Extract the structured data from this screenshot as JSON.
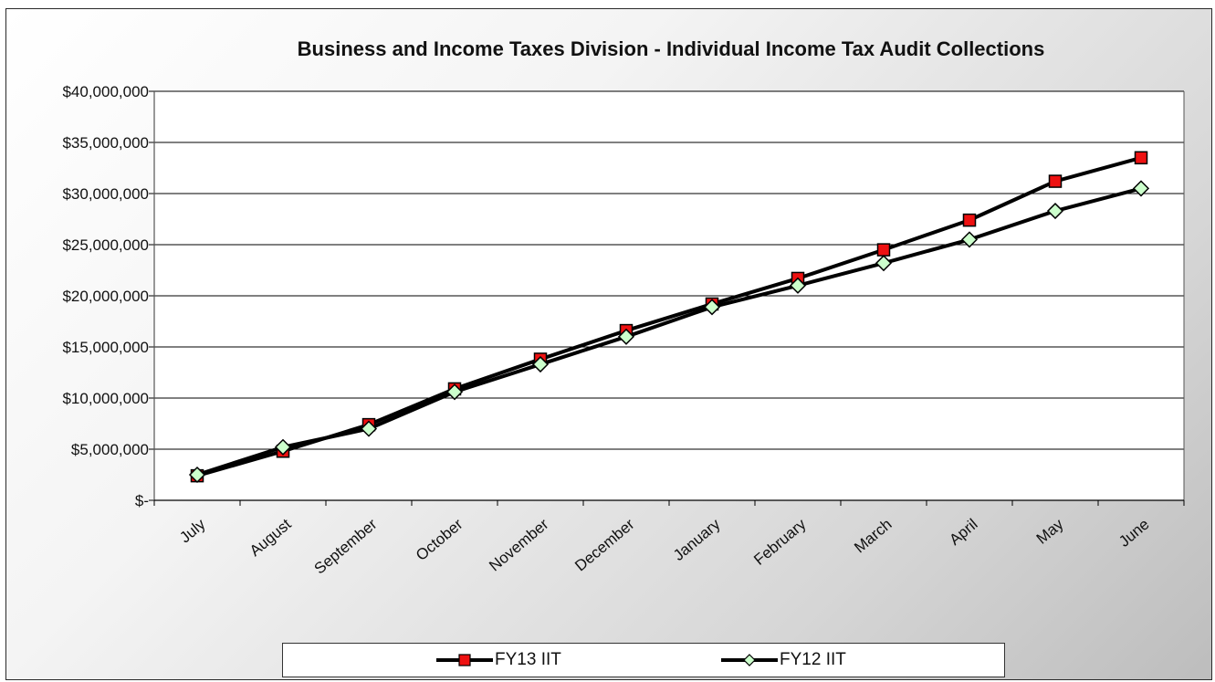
{
  "chart_data": {
    "type": "line",
    "title": "Business and Income Taxes Division - Individual Income Tax Audit Collections",
    "xlabel": "",
    "ylabel": "",
    "categories": [
      "July",
      "August",
      "September",
      "October",
      "November",
      "December",
      "January",
      "February",
      "March",
      "April",
      "May",
      "June"
    ],
    "ylim": [
      0,
      40000000
    ],
    "y_ticks": [
      0,
      5000000,
      10000000,
      15000000,
      20000000,
      25000000,
      30000000,
      35000000,
      40000000
    ],
    "y_tick_labels": [
      "$-",
      "$5,000,000",
      "$10,000,000",
      "$15,000,000",
      "$20,000,000",
      "$25,000,000",
      "$30,000,000",
      "$35,000,000",
      "$40,000,000"
    ],
    "grid": true,
    "legend_position": "bottom",
    "series": [
      {
        "name": "FY13 IIT",
        "color": "#ee1111",
        "marker": "square",
        "values": [
          2400000,
          4800000,
          7400000,
          10900000,
          13800000,
          16600000,
          19200000,
          21700000,
          24500000,
          27400000,
          31200000,
          33500000
        ]
      },
      {
        "name": "FY12 IIT",
        "color": "#ccffcc",
        "marker": "diamond",
        "values": [
          2500000,
          5200000,
          7000000,
          10600000,
          13300000,
          16000000,
          18900000,
          21000000,
          23200000,
          25500000,
          28300000,
          30500000
        ]
      }
    ]
  }
}
